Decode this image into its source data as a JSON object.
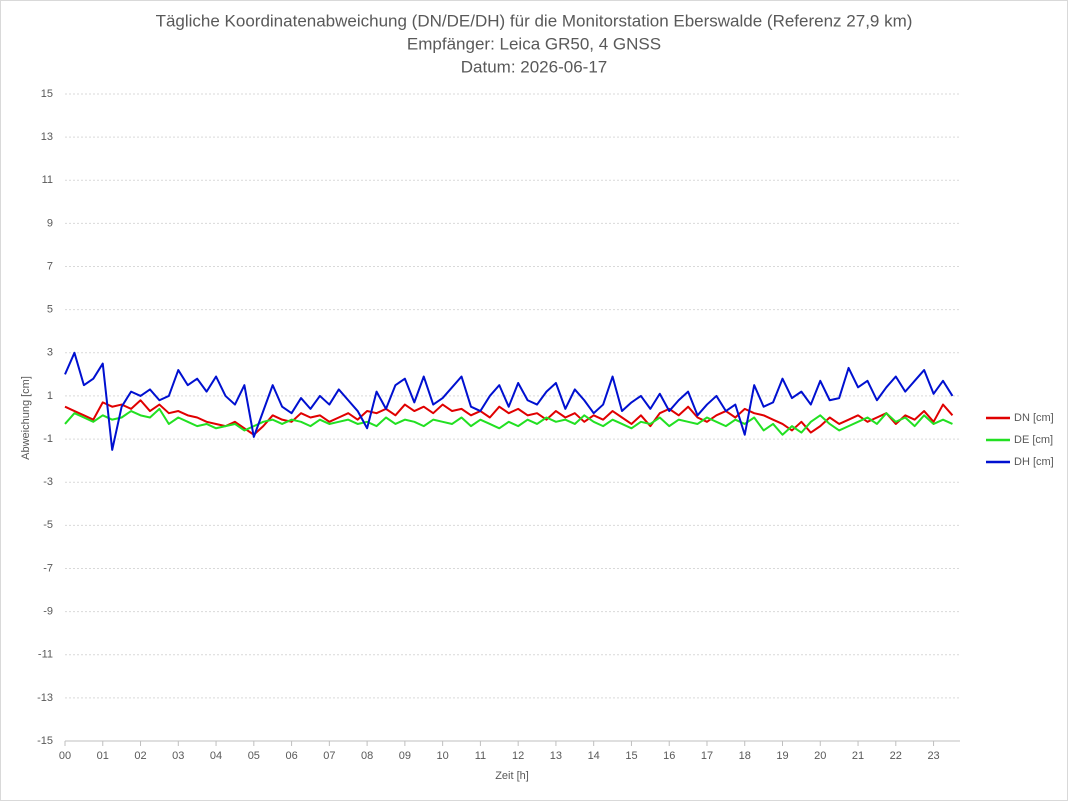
{
  "chart_data": {
    "type": "line",
    "title": "Tägliche Koordinatenabweichung (DN/DE/DH) für die Monitorstation Eberswalde (Referenz 27,9 km)",
    "subtitle": "Empfänger: Leica GR50, 4 GNSS",
    "date_label": "Datum: 2026-06-17",
    "x_label": "Zeit [h]",
    "y_label": "Abweichung [cm]",
    "grid": true,
    "legend": "right",
    "xlim": [
      0,
      23.7
    ],
    "xticks": [
      {
        "value": 0,
        "label": "00"
      },
      {
        "value": 1,
        "label": "01"
      },
      {
        "value": 2,
        "label": "02"
      },
      {
        "value": 3,
        "label": "03"
      },
      {
        "value": 4,
        "label": "04"
      },
      {
        "value": 5,
        "label": "05"
      },
      {
        "value": 6,
        "label": "06"
      },
      {
        "value": 7,
        "label": "07"
      },
      {
        "value": 8,
        "label": "08"
      },
      {
        "value": 9,
        "label": "09"
      },
      10,
      11,
      12,
      13,
      14,
      15,
      16,
      17,
      18,
      19,
      20,
      21,
      22,
      23
    ],
    "ylim": [
      -15,
      15
    ],
    "yticks": [
      -15,
      -13,
      -11,
      -9,
      -7,
      -5,
      -3,
      -1,
      1,
      3,
      5,
      7,
      9,
      11,
      13,
      15
    ],
    "x": [
      0,
      0.25,
      0.5,
      0.75,
      1,
      1.25,
      1.5,
      1.75,
      2,
      2.25,
      2.5,
      2.75,
      3,
      3.25,
      3.5,
      3.75,
      4,
      4.25,
      4.5,
      4.75,
      5,
      5.25,
      5.5,
      5.75,
      6,
      6.25,
      6.5,
      6.75,
      7,
      7.25,
      7.5,
      7.75,
      8,
      8.25,
      8.5,
      8.75,
      9,
      9.25,
      9.5,
      9.75,
      10,
      10.25,
      10.5,
      10.75,
      11,
      11.25,
      11.5,
      11.75,
      12,
      12.25,
      12.5,
      12.75,
      13,
      13.25,
      13.5,
      13.75,
      14,
      14.25,
      14.5,
      14.75,
      15,
      15.25,
      15.5,
      15.75,
      16,
      16.25,
      16.5,
      16.75,
      17,
      17.25,
      17.5,
      17.75,
      18,
      18.25,
      18.5,
      18.75,
      19,
      19.25,
      19.5,
      19.75,
      20,
      20.25,
      20.5,
      20.75,
      21,
      21.25,
      21.5,
      21.75,
      22,
      22.25,
      22.5,
      22.75,
      23,
      23.25,
      23.5
    ],
    "series": [
      {
        "name": "DN [cm]",
        "color": "#e00000",
        "values": [
          0.5,
          0.3,
          0.1,
          -0.1,
          0.7,
          0.5,
          0.6,
          0.4,
          0.8,
          0.3,
          0.6,
          0.2,
          0.3,
          0.1,
          0.0,
          -0.2,
          -0.3,
          -0.4,
          -0.2,
          -0.5,
          -0.8,
          -0.4,
          0.1,
          -0.1,
          -0.2,
          0.2,
          0.0,
          0.1,
          -0.2,
          0.0,
          0.2,
          -0.1,
          0.3,
          0.2,
          0.4,
          0.1,
          0.6,
          0.3,
          0.5,
          0.2,
          0.6,
          0.3,
          0.4,
          0.1,
          0.3,
          0.0,
          0.5,
          0.2,
          0.4,
          0.1,
          0.2,
          -0.1,
          0.3,
          0.0,
          0.2,
          -0.2,
          0.1,
          -0.1,
          0.3,
          0.0,
          -0.3,
          0.1,
          -0.4,
          0.2,
          0.4,
          0.1,
          0.5,
          0.0,
          -0.2,
          0.1,
          0.3,
          0.0,
          0.4,
          0.2,
          0.1,
          -0.1,
          -0.3,
          -0.6,
          -0.2,
          -0.7,
          -0.4,
          0.0,
          -0.3,
          -0.1,
          0.1,
          -0.2,
          0.0,
          0.2,
          -0.3,
          0.1,
          -0.1,
          0.3,
          -0.2,
          0.6,
          0.1
        ]
      },
      {
        "name": "DE [cm]",
        "color": "#22e022",
        "values": [
          -0.3,
          0.2,
          0.0,
          -0.2,
          0.1,
          -0.1,
          0.0,
          0.3,
          0.1,
          0.0,
          0.4,
          -0.3,
          0.0,
          -0.2,
          -0.4,
          -0.3,
          -0.5,
          -0.4,
          -0.3,
          -0.6,
          -0.4,
          -0.2,
          -0.1,
          -0.3,
          -0.1,
          -0.2,
          -0.4,
          -0.1,
          -0.3,
          -0.2,
          -0.1,
          -0.3,
          -0.2,
          -0.4,
          0.0,
          -0.3,
          -0.1,
          -0.2,
          -0.4,
          -0.1,
          -0.2,
          -0.3,
          0.0,
          -0.4,
          -0.1,
          -0.3,
          -0.5,
          -0.2,
          -0.4,
          -0.1,
          -0.3,
          0.0,
          -0.2,
          -0.1,
          -0.3,
          0.1,
          -0.2,
          -0.4,
          -0.1,
          -0.3,
          -0.5,
          -0.2,
          -0.3,
          0.0,
          -0.4,
          -0.1,
          -0.2,
          -0.3,
          0.0,
          -0.2,
          -0.4,
          -0.1,
          -0.3,
          0.0,
          -0.6,
          -0.3,
          -0.8,
          -0.4,
          -0.7,
          -0.2,
          0.1,
          -0.3,
          -0.6,
          -0.4,
          -0.2,
          0.0,
          -0.3,
          0.2,
          -0.2,
          0.0,
          -0.4,
          0.1,
          -0.3,
          -0.1,
          -0.3
        ]
      },
      {
        "name": "DH [cm]",
        "color": "#0010d0",
        "values": [
          2.0,
          3.0,
          1.5,
          1.8,
          2.5,
          -1.5,
          0.5,
          1.2,
          1.0,
          1.3,
          0.8,
          1.0,
          2.2,
          1.5,
          1.8,
          1.2,
          1.9,
          1.0,
          0.6,
          1.5,
          -0.9,
          0.3,
          1.5,
          0.5,
          0.2,
          0.9,
          0.4,
          1.0,
          0.6,
          1.3,
          0.8,
          0.3,
          -0.5,
          1.2,
          0.4,
          1.5,
          1.8,
          0.7,
          1.9,
          0.6,
          0.9,
          1.4,
          1.9,
          0.5,
          0.3,
          1.0,
          1.5,
          0.5,
          1.6,
          0.8,
          0.6,
          1.2,
          1.6,
          0.4,
          1.3,
          0.8,
          0.2,
          0.6,
          1.9,
          0.3,
          0.7,
          1.0,
          0.4,
          1.1,
          0.3,
          0.8,
          1.2,
          0.1,
          0.6,
          1.0,
          0.3,
          0.6,
          -0.8,
          1.5,
          0.5,
          0.7,
          1.8,
          0.9,
          1.2,
          0.6,
          1.7,
          0.8,
          0.9,
          2.3,
          1.4,
          1.7,
          0.8,
          1.4,
          1.9,
          1.2,
          1.7,
          2.2,
          1.1,
          1.7,
          1.0
        ]
      }
    ]
  }
}
